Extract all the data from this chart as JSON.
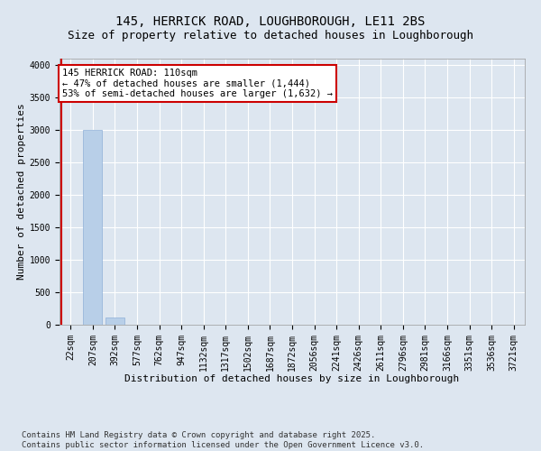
{
  "title1": "145, HERRICK ROAD, LOUGHBOROUGH, LE11 2BS",
  "title2": "Size of property relative to detached houses in Loughborough",
  "xlabel": "Distribution of detached houses by size in Loughborough",
  "ylabel": "Number of detached properties",
  "categories": [
    "22sqm",
    "207sqm",
    "392sqm",
    "577sqm",
    "762sqm",
    "947sqm",
    "1132sqm",
    "1317sqm",
    "1502sqm",
    "1687sqm",
    "1872sqm",
    "2056sqm",
    "2241sqm",
    "2426sqm",
    "2611sqm",
    "2796sqm",
    "2981sqm",
    "3166sqm",
    "3351sqm",
    "3536sqm",
    "3721sqm"
  ],
  "values": [
    0,
    3000,
    110,
    0,
    0,
    0,
    0,
    0,
    0,
    0,
    0,
    0,
    0,
    0,
    0,
    0,
    0,
    0,
    0,
    0,
    0
  ],
  "bar_color": "#b8cfe8",
  "bar_edge_color": "#8fb0d8",
  "ylim": [
    0,
    4100
  ],
  "yticks": [
    0,
    500,
    1000,
    1500,
    2000,
    2500,
    3000,
    3500,
    4000
  ],
  "annotation_line1": "145 HERRICK ROAD: 110sqm",
  "annotation_line2": "← 47% of detached houses are smaller (1,444)",
  "annotation_line3": "53% of semi-detached houses are larger (1,632) →",
  "annotation_box_color": "#ffffff",
  "annotation_border_color": "#cc0000",
  "footer1": "Contains HM Land Registry data © Crown copyright and database right 2025.",
  "footer2": "Contains public sector information licensed under the Open Government Licence v3.0.",
  "bg_color": "#dde6f0",
  "plot_bg_color": "#dde6f0",
  "grid_color": "#ffffff",
  "title1_fontsize": 10,
  "title2_fontsize": 9,
  "axis_label_fontsize": 8,
  "tick_fontsize": 7,
  "annotation_fontsize": 7.5,
  "footer_fontsize": 6.5
}
